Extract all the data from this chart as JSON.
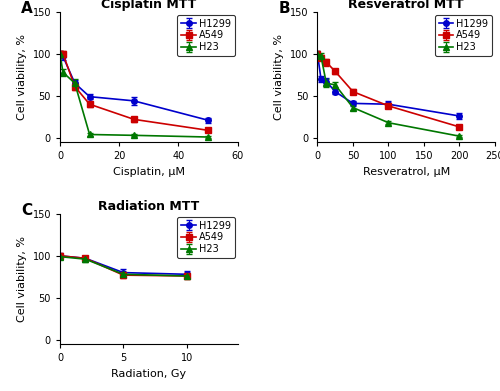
{
  "cisplatin": {
    "title": "Cisplatin MTT",
    "xlabel": "Cisplatin, μM",
    "ylabel": "Cell viability, %",
    "xlim": [
      0,
      60
    ],
    "ylim": [
      -5,
      150
    ],
    "yticks": [
      0,
      50,
      100,
      150
    ],
    "xticks": [
      0,
      20,
      40,
      60
    ],
    "H1299": {
      "x": [
        0,
        1,
        5,
        10,
        25,
        50
      ],
      "y": [
        100,
        97,
        65,
        49,
        44,
        21
      ],
      "yerr": [
        3,
        4,
        4,
        3,
        5,
        3
      ],
      "color": "#0000CC",
      "marker": "o"
    },
    "A549": {
      "x": [
        0,
        1,
        5,
        10,
        25,
        50
      ],
      "y": [
        100,
        100,
        61,
        40,
        22,
        9
      ],
      "yerr": [
        3,
        3,
        4,
        3,
        3,
        2
      ],
      "color": "#CC0000",
      "marker": "s"
    },
    "H23": {
      "x": [
        0,
        1,
        5,
        10,
        25,
        50
      ],
      "y": [
        100,
        78,
        65,
        4,
        3,
        1
      ],
      "yerr": [
        3,
        4,
        5,
        2,
        1,
        1
      ],
      "color": "#007700",
      "marker": "^"
    }
  },
  "resveratrol": {
    "title": "Resveratrol MTT",
    "xlabel": "Resveratrol, μM",
    "ylabel": "Cell viability, %",
    "xlim": [
      0,
      250
    ],
    "ylim": [
      -5,
      150
    ],
    "yticks": [
      0,
      50,
      100,
      150
    ],
    "xticks": [
      0,
      50,
      100,
      150,
      200,
      250
    ],
    "H1299": {
      "x": [
        0,
        5,
        12.5,
        25,
        50,
        100,
        200
      ],
      "y": [
        100,
        70,
        67,
        55,
        41,
        40,
        26
      ],
      "yerr": [
        3,
        4,
        4,
        3,
        3,
        4,
        3
      ],
      "color": "#0000CC",
      "marker": "o"
    },
    "A549": {
      "x": [
        0,
        5,
        12.5,
        25,
        50,
        100,
        200
      ],
      "y": [
        100,
        95,
        90,
        79,
        55,
        38,
        13
      ],
      "yerr": [
        3,
        3,
        4,
        3,
        3,
        3,
        2
      ],
      "color": "#CC0000",
      "marker": "s"
    },
    "H23": {
      "x": [
        0,
        5,
        12.5,
        25,
        50,
        100,
        200
      ],
      "y": [
        100,
        97,
        65,
        63,
        36,
        18,
        2
      ],
      "yerr": [
        3,
        4,
        5,
        4,
        3,
        2,
        1
      ],
      "color": "#007700",
      "marker": "^"
    }
  },
  "radiation": {
    "title": "Radiation MTT",
    "xlabel": "Radiation, Gy",
    "ylabel": "Cell viability, %",
    "xlim": [
      0,
      14
    ],
    "ylim": [
      -5,
      150
    ],
    "yticks": [
      0,
      50,
      100,
      150
    ],
    "xticks": [
      0,
      5,
      10
    ],
    "H1299": {
      "x": [
        0,
        2,
        5,
        10
      ],
      "y": [
        100,
        97,
        80,
        78
      ],
      "yerr": [
        3,
        3,
        4,
        4
      ],
      "color": "#0000CC",
      "marker": "o"
    },
    "A549": {
      "x": [
        0,
        2,
        5,
        10
      ],
      "y": [
        100,
        97,
        77,
        76
      ],
      "yerr": [
        3,
        3,
        4,
        4
      ],
      "color": "#CC0000",
      "marker": "s"
    },
    "H23": {
      "x": [
        0,
        2,
        5,
        10
      ],
      "y": [
        99,
        96,
        78,
        76
      ],
      "yerr": [
        3,
        3,
        3,
        3
      ],
      "color": "#007700",
      "marker": "^"
    }
  },
  "legend_labels": [
    "H1299",
    "A549",
    "H23"
  ],
  "panel_labels": [
    "A",
    "B",
    "C"
  ],
  "fontsize_title": 9,
  "fontsize_label": 8,
  "fontsize_tick": 7,
  "fontsize_legend": 7,
  "fontsize_panel": 11,
  "linewidth": 1.2,
  "markersize": 4
}
